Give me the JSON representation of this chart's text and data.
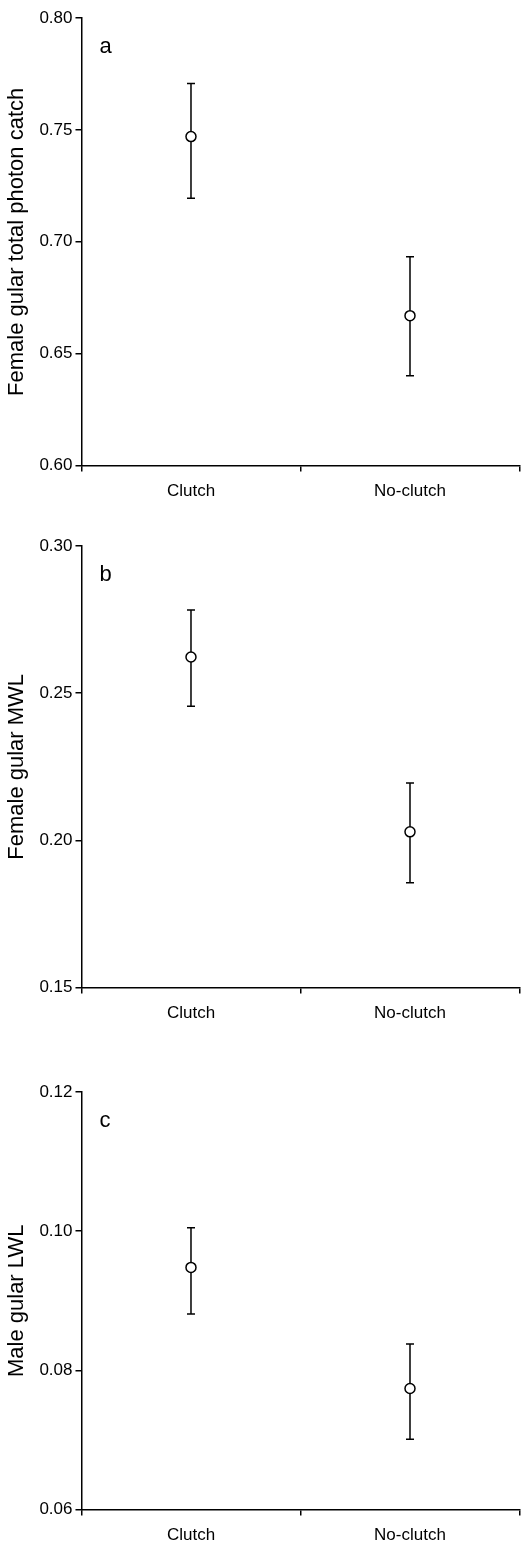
{
  "chart_data": [
    {
      "type": "scatter",
      "annotations": [
        "a"
      ],
      "ylabel": "Female gular total photon catch",
      "categories": [
        "Clutch",
        "No-clutch"
      ],
      "series": [
        {
          "color": "#000000",
          "values": [
            0.747,
            0.667
          ],
          "errors": [
            [
              0.7195,
              0.7707
            ],
            [
              0.6402,
              0.6933
            ]
          ]
        }
      ],
      "marker": "circle",
      "ylim": [
        0.6,
        0.8
      ],
      "yticks": [
        {
          "value": 0.6,
          "label": "0.60"
        },
        {
          "value": 0.65,
          "label": "0.65"
        },
        {
          "value": 0.7,
          "label": "0.70"
        },
        {
          "value": 0.75,
          "label": "0.75"
        },
        {
          "value": 0.8,
          "label": "0.80"
        }
      ],
      "grid": false,
      "legend": false
    },
    {
      "type": "scatter",
      "annotations": [
        "b"
      ],
      "ylabel": "Female gular MWL",
      "categories": [
        "Clutch",
        "No-clutch"
      ],
      "series": [
        {
          "color": "#000000",
          "values": [
            0.2623,
            0.2029
          ],
          "errors": [
            [
              0.2456,
              0.2783
            ],
            [
              0.1856,
              0.2195
            ]
          ]
        }
      ],
      "marker": "circle",
      "ylim": [
        0.15,
        0.3
      ],
      "yticks": [
        {
          "value": 0.15,
          "label": "0.15"
        },
        {
          "value": 0.2,
          "label": "0.20"
        },
        {
          "value": 0.25,
          "label": "0.25"
        },
        {
          "value": 0.3,
          "label": "0.30"
        }
      ],
      "grid": false,
      "legend": false
    },
    {
      "type": "scatter",
      "annotations": [
        "c"
      ],
      "ylabel": "Male gular LWL",
      "categories": [
        "Clutch",
        "No-clutch"
      ],
      "series": [
        {
          "color": "#000000",
          "values": [
            0.0948,
            0.0774
          ],
          "errors": [
            [
              0.0881,
              0.1005
            ],
            [
              0.0701,
              0.0838
            ]
          ]
        }
      ],
      "marker": "circle",
      "ylim": [
        0.06,
        0.12
      ],
      "yticks": [
        {
          "value": 0.06,
          "label": "0.06"
        },
        {
          "value": 0.08,
          "label": "0.08"
        },
        {
          "value": 0.1,
          "label": "0.10"
        },
        {
          "value": 0.12,
          "label": "0.12"
        }
      ],
      "grid": false,
      "legend": false
    }
  ]
}
